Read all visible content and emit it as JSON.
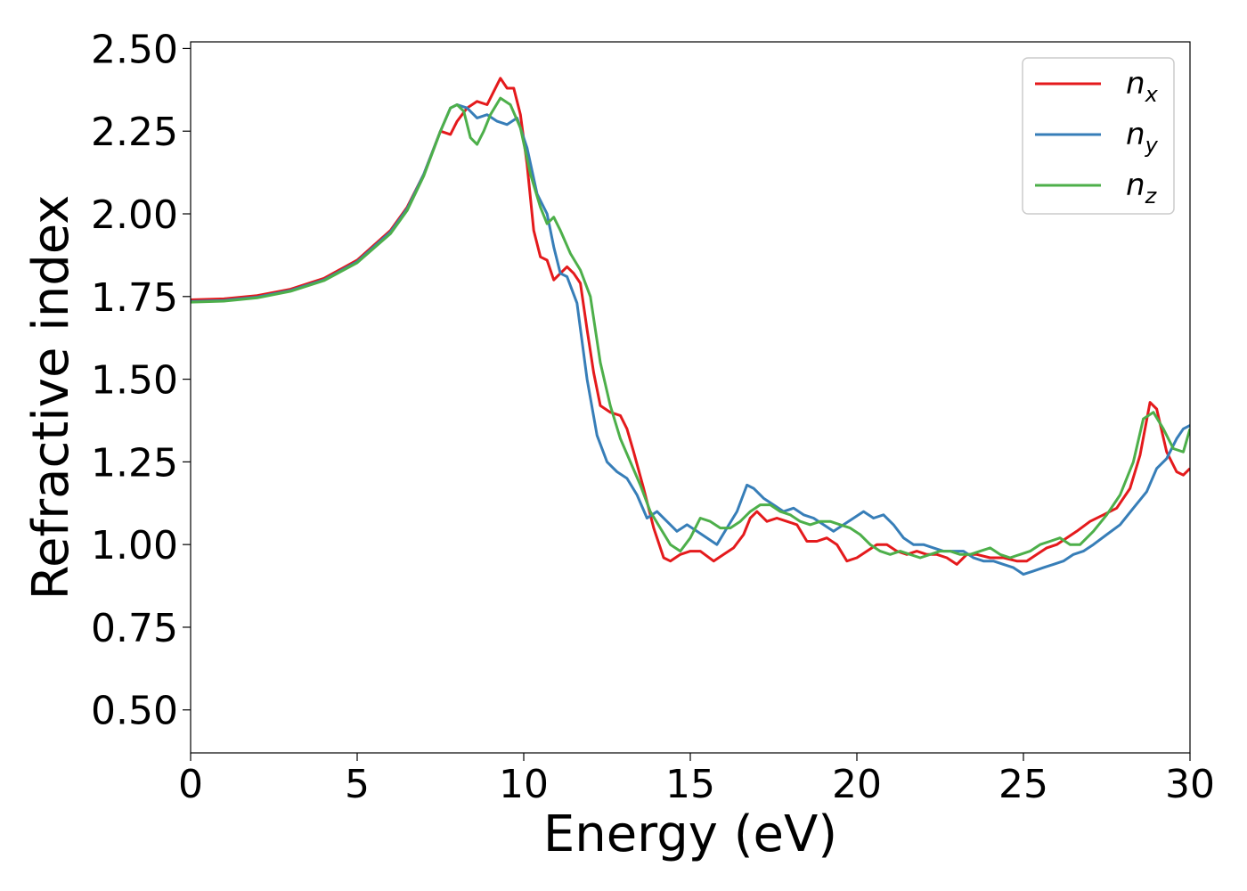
{
  "chart_data": {
    "type": "line",
    "xlabel": "Energy (eV)",
    "ylabel": "Refractive index",
    "xlim": [
      0,
      30
    ],
    "ylim": [
      0.37,
      2.52
    ],
    "xticks": [
      0,
      5,
      10,
      15,
      20,
      25,
      30
    ],
    "yticks": [
      0.5,
      0.75,
      1.0,
      1.25,
      1.5,
      1.75,
      2.0,
      2.25,
      2.5
    ],
    "ytick_labels": [
      "0.50",
      "0.75",
      "1.00",
      "1.25",
      "1.50",
      "1.75",
      "2.00",
      "2.25",
      "2.50"
    ],
    "xtick_labels": [
      "0",
      "5",
      "10",
      "15",
      "20",
      "25",
      "30"
    ],
    "grid": false,
    "legend_position": "top-right",
    "series": [
      {
        "name": "n",
        "subscript": "x",
        "color": "#e41a1c",
        "x": [
          0,
          1,
          2,
          3,
          4,
          5,
          6,
          6.5,
          7,
          7.5,
          7.8,
          8,
          8.3,
          8.6,
          8.9,
          9.1,
          9.3,
          9.5,
          9.7,
          9.9,
          10.1,
          10.3,
          10.5,
          10.7,
          10.9,
          11.1,
          11.3,
          11.5,
          11.7,
          11.9,
          12.1,
          12.3,
          12.6,
          12.9,
          13.1,
          13.3,
          13.6,
          13.9,
          14.2,
          14.4,
          14.7,
          15,
          15.3,
          15.7,
          16,
          16.3,
          16.6,
          16.8,
          17,
          17.3,
          17.6,
          17.9,
          18.2,
          18.5,
          18.8,
          19.1,
          19.4,
          19.7,
          20,
          20.3,
          20.6,
          20.9,
          21.2,
          21.5,
          21.8,
          22.1,
          22.4,
          22.7,
          23,
          23.3,
          23.6,
          24,
          24.4,
          24.8,
          25.1,
          25.4,
          25.7,
          26,
          26.3,
          26.6,
          27,
          27.4,
          27.8,
          28.2,
          28.5,
          28.8,
          29,
          29.3,
          29.6,
          29.8,
          30
        ],
        "values": [
          1.74,
          1.743,
          1.753,
          1.772,
          1.805,
          1.86,
          1.95,
          2.02,
          2.12,
          2.25,
          2.24,
          2.28,
          2.32,
          2.34,
          2.33,
          2.37,
          2.41,
          2.38,
          2.38,
          2.3,
          2.15,
          1.95,
          1.87,
          1.86,
          1.8,
          1.82,
          1.84,
          1.82,
          1.79,
          1.65,
          1.52,
          1.42,
          1.4,
          1.39,
          1.35,
          1.28,
          1.17,
          1.05,
          0.96,
          0.95,
          0.97,
          0.98,
          0.98,
          0.95,
          0.97,
          0.99,
          1.03,
          1.08,
          1.1,
          1.07,
          1.08,
          1.07,
          1.06,
          1.01,
          1.01,
          1.02,
          1.0,
          0.95,
          0.96,
          0.98,
          1.0,
          1.0,
          0.98,
          0.97,
          0.98,
          0.97,
          0.97,
          0.96,
          0.94,
          0.97,
          0.97,
          0.96,
          0.96,
          0.95,
          0.95,
          0.97,
          0.99,
          1.0,
          1.02,
          1.04,
          1.07,
          1.09,
          1.11,
          1.17,
          1.27,
          1.43,
          1.41,
          1.28,
          1.22,
          1.21,
          1.23
        ]
      },
      {
        "name": "n",
        "subscript": "y",
        "color": "#377eb8",
        "x": [
          0,
          1,
          2,
          3,
          4,
          5,
          6,
          6.5,
          7,
          7.5,
          7.8,
          8,
          8.3,
          8.6,
          8.9,
          9.2,
          9.5,
          9.8,
          10.1,
          10.4,
          10.7,
          10.9,
          11.1,
          11.3,
          11.6,
          11.9,
          12.2,
          12.5,
          12.8,
          13.1,
          13.4,
          13.7,
          14,
          14.3,
          14.6,
          14.9,
          15.2,
          15.5,
          15.8,
          16.1,
          16.4,
          16.7,
          16.9,
          17.2,
          17.5,
          17.8,
          18.1,
          18.4,
          18.7,
          19,
          19.3,
          19.6,
          19.9,
          20.2,
          20.5,
          20.8,
          21.1,
          21.4,
          21.7,
          22,
          22.3,
          22.6,
          22.9,
          23.2,
          23.5,
          23.8,
          24.1,
          24.4,
          24.7,
          25,
          25.3,
          25.6,
          25.9,
          26.2,
          26.5,
          26.8,
          27.1,
          27.5,
          27.9,
          28.3,
          28.7,
          29,
          29.3,
          29.6,
          29.8,
          30
        ],
        "values": [
          1.735,
          1.738,
          1.748,
          1.768,
          1.8,
          1.855,
          1.945,
          2.015,
          2.12,
          2.25,
          2.32,
          2.33,
          2.32,
          2.29,
          2.3,
          2.28,
          2.27,
          2.29,
          2.2,
          2.06,
          2.0,
          1.9,
          1.82,
          1.81,
          1.73,
          1.5,
          1.33,
          1.25,
          1.22,
          1.2,
          1.15,
          1.08,
          1.1,
          1.07,
          1.04,
          1.06,
          1.04,
          1.02,
          1.0,
          1.05,
          1.1,
          1.18,
          1.17,
          1.14,
          1.12,
          1.1,
          1.11,
          1.09,
          1.08,
          1.06,
          1.04,
          1.06,
          1.08,
          1.1,
          1.08,
          1.09,
          1.06,
          1.02,
          1.0,
          1.0,
          0.99,
          0.98,
          0.98,
          0.98,
          0.96,
          0.95,
          0.95,
          0.94,
          0.93,
          0.91,
          0.92,
          0.93,
          0.94,
          0.95,
          0.97,
          0.98,
          1.0,
          1.03,
          1.06,
          1.11,
          1.16,
          1.23,
          1.26,
          1.32,
          1.35,
          1.36
        ]
      },
      {
        "name": "n",
        "subscript": "z",
        "color": "#4daf4a",
        "x": [
          0,
          1,
          2,
          3,
          4,
          5,
          6,
          6.5,
          7,
          7.5,
          7.8,
          8,
          8.2,
          8.4,
          8.6,
          8.8,
          9,
          9.3,
          9.6,
          9.9,
          10.2,
          10.5,
          10.7,
          10.9,
          11.1,
          11.4,
          11.7,
          12,
          12.3,
          12.6,
          12.9,
          13.2,
          13.5,
          13.8,
          14.1,
          14.4,
          14.7,
          15,
          15.3,
          15.6,
          15.9,
          16.2,
          16.5,
          16.8,
          17.1,
          17.4,
          17.7,
          18,
          18.3,
          18.6,
          18.9,
          19.2,
          19.5,
          19.8,
          20.1,
          20.4,
          20.7,
          21,
          21.3,
          21.6,
          21.9,
          22.2,
          22.5,
          22.8,
          23.1,
          23.4,
          23.7,
          24,
          24.3,
          24.6,
          24.9,
          25.2,
          25.5,
          25.8,
          26.1,
          26.4,
          26.7,
          27.1,
          27.5,
          27.9,
          28.3,
          28.6,
          28.9,
          29.2,
          29.5,
          29.8,
          30
        ],
        "values": [
          1.733,
          1.736,
          1.746,
          1.766,
          1.798,
          1.852,
          1.94,
          2.01,
          2.115,
          2.25,
          2.32,
          2.33,
          2.31,
          2.23,
          2.21,
          2.25,
          2.3,
          2.35,
          2.33,
          2.26,
          2.12,
          2.02,
          1.97,
          1.99,
          1.95,
          1.88,
          1.83,
          1.75,
          1.55,
          1.42,
          1.32,
          1.25,
          1.18,
          1.1,
          1.05,
          1.0,
          0.98,
          1.02,
          1.08,
          1.07,
          1.05,
          1.05,
          1.07,
          1.1,
          1.12,
          1.12,
          1.1,
          1.09,
          1.07,
          1.06,
          1.07,
          1.07,
          1.06,
          1.05,
          1.03,
          1.0,
          0.98,
          0.97,
          0.98,
          0.97,
          0.96,
          0.97,
          0.98,
          0.98,
          0.97,
          0.97,
          0.98,
          0.99,
          0.97,
          0.96,
          0.97,
          0.98,
          1.0,
          1.01,
          1.02,
          1.0,
          1.0,
          1.04,
          1.09,
          1.15,
          1.25,
          1.38,
          1.4,
          1.35,
          1.29,
          1.28,
          1.35
        ]
      }
    ]
  }
}
